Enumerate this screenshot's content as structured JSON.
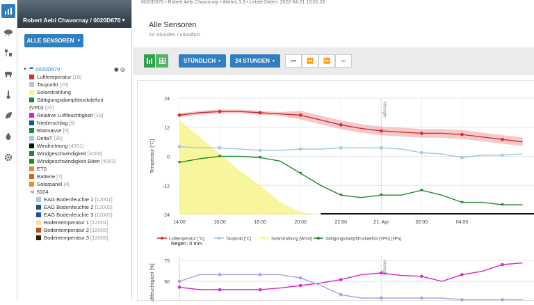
{
  "topbar": {
    "text": "0020D670 • Robert Aebi Chavornay • iMetos 3.3 • Letzte Daten: 2022-04-21 13:01:26"
  },
  "header": {
    "title": "Robert Aebi Chavornay / 0020D670",
    "all_sensors_label": "ALLE SENSOREN"
  },
  "page": {
    "title": "Alle Sensoren",
    "subtitle": "24 Stunden / stündlich"
  },
  "toolbar": {
    "resolution_label": "STÜNDLICH",
    "period_label": "24 STUNDEN"
  },
  "tree": {
    "station": "0020D670",
    "sensors": [
      {
        "label": "Lufttemperatur",
        "count": "[18]",
        "color": "#d32f2f"
      },
      {
        "label": "Taupunkt",
        "count": "[20]",
        "color": "#a8c9e0"
      },
      {
        "label": "Solarstrahlung",
        "count": "",
        "color": "#f7f48b"
      },
      {
        "label": "Sättigungsdampfdruckdefizit",
        "count": "",
        "color": "#1e8a2c"
      },
      {
        "label": "(VPD)",
        "count": "[26]",
        "color": ""
      },
      {
        "label": "Relative Luftfeuchtigkeit",
        "count": "[19]",
        "color": "#e020d0"
      },
      {
        "label": "Niederschlag",
        "count": "[5]",
        "color": "#1e4fa0"
      },
      {
        "label": "Blattnässe",
        "count": "[6]",
        "color": "#1e8a2c"
      },
      {
        "label": "DeltaT",
        "count": "[35]",
        "color": "#a8c9e0"
      },
      {
        "label": "Windrichtung",
        "count": "[4001]",
        "color": "#111111"
      },
      {
        "label": "Windgeschwindigkeit",
        "count": "[4000]",
        "color": "#1e8a2c"
      },
      {
        "label": "Windgeschwindigkeit Böen",
        "count": "[4002]",
        "color": "#1e8a2c"
      },
      {
        "label": "ET0",
        "count": "",
        "color": "#f08a1c"
      },
      {
        "label": "Batterie",
        "count": "[7]",
        "color": "#e0601c"
      },
      {
        "label": "Solarpanel",
        "count": "[4]",
        "color": "#f08a1c"
      }
    ],
    "group": "5104",
    "group_sensors": [
      {
        "label": "EAG Bodenfeuchte 1",
        "count": "[12001]",
        "color": "#a8c9e0"
      },
      {
        "label": "EAG Bodenfeuchte 2",
        "count": "[12002]",
        "color": "#1e4fa0"
      },
      {
        "label": "EAG Bodenfeuchte 3",
        "count": "[12003]",
        "color": "#1e4fa0"
      },
      {
        "label": "Bodentemperatur 1",
        "count": "[12004]",
        "color": "#f8e0b0"
      },
      {
        "label": "Bodentemperatur 2",
        "count": "[12005]",
        "color": "#c04a10"
      },
      {
        "label": "Bodentemperatur 3",
        "count": "[12006]",
        "color": "#3a1a0a"
      }
    ]
  },
  "chart_data": [
    {
      "type": "line",
      "ylabel": "Temperatur [°C]",
      "ylim": [
        -24,
        24
      ],
      "yticks": [
        "24",
        "12",
        "0",
        "-12",
        "-24"
      ],
      "x_ticks": [
        "14:00",
        "16:00",
        "18:00",
        "20:00",
        "22:00",
        "21. Apr",
        "02:00",
        "04:00"
      ],
      "annotation": "Midnight",
      "series": [
        {
          "name": "Lufttemperatur [°C]",
          "color": "#d32f2f",
          "values": [
            17,
            18,
            18.5,
            18.5,
            18,
            17.5,
            17,
            15,
            13,
            11.5,
            10.5,
            10,
            9.5,
            9.5,
            9,
            8,
            7,
            6
          ]
        },
        {
          "name": "Taupunkt [°C]",
          "color": "#9fc7e0",
          "values": [
            4,
            3.5,
            3.5,
            3,
            2.5,
            2.5,
            3,
            3,
            3.5,
            3.5,
            3.5,
            3,
            1.5,
            1,
            -0.5,
            0.5,
            0.5,
            1
          ]
        },
        {
          "name": "Solarstrahlung [W/m2]",
          "color": "#f7f48b",
          "values": [
            15,
            8,
            1,
            -6,
            -12,
            -19,
            -23,
            -24,
            -24,
            -24,
            -24,
            -24,
            -24,
            -24,
            -24,
            -24,
            -24,
            -24
          ]
        },
        {
          "name": "Sättigungsdampfdruckdefizit (VPD) [kPa]",
          "color": "#1e8a2c",
          "values": [
            -2.5,
            -1,
            0,
            0,
            -0.5,
            -2,
            -7,
            -12,
            -16,
            -17,
            -16,
            -16,
            -14,
            -16,
            -19,
            -19,
            -20,
            -20
          ]
        }
      ],
      "extra_label": "Regen: 0 mm"
    },
    {
      "type": "line",
      "ylabel": "Luftfeuchtigkeit [%]",
      "yticks": [
        "75",
        "50"
      ],
      "annotation": "Midnight",
      "series": [
        {
          "name": "Relative Luftfeuchtigkeit",
          "color": "#e020d0",
          "values": [
            43,
            40,
            40,
            40,
            40,
            42,
            45,
            48,
            52,
            58,
            60,
            57,
            56,
            50,
            58,
            62,
            70,
            72
          ]
        },
        {
          "name": "DeltaT",
          "color": "#a7a1e0",
          "values": [
            50,
            58,
            58,
            58,
            58,
            58,
            54,
            45,
            34,
            30,
            30,
            30,
            30,
            30,
            28,
            28,
            28,
            28
          ]
        }
      ]
    }
  ]
}
